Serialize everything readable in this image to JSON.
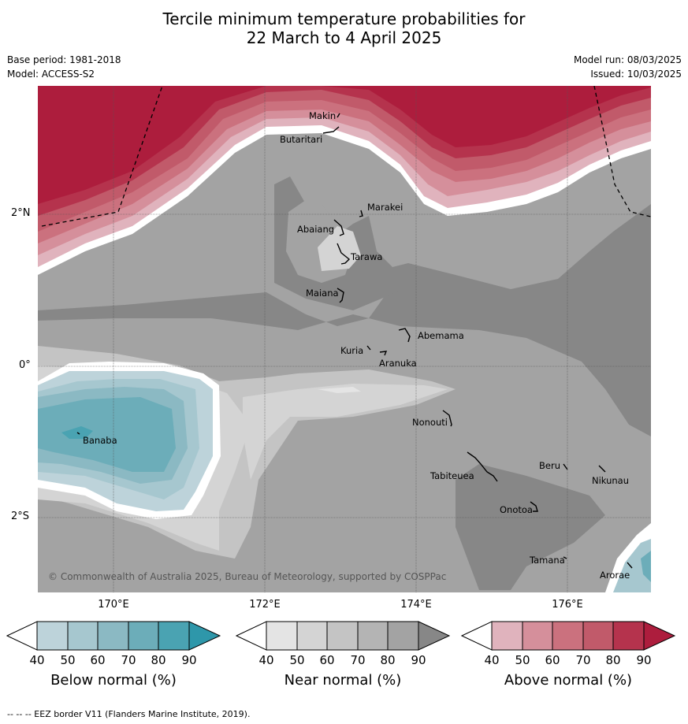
{
  "title_line1": "Tercile minimum temperature probabilities for",
  "title_line2": "22 March to 4 April 2025",
  "base_period": "Base period: 1981-2018",
  "model": "Model: ACCESS-S2",
  "model_run": "Model run: 08/03/2025",
  "issued": "Issued: 10/03/2025",
  "copyright": "© Commonwealth of Australia 2025, Bureau of Meteorology, supported by COSPPac",
  "lat_labels": [
    "2°N",
    "0°",
    "2°S"
  ],
  "lon_labels": [
    "170°E",
    "172°E",
    "174°E",
    "176°E"
  ],
  "islands": [
    "Makin",
    "Butaritari",
    "Marakei",
    "Abaiang",
    "Tarawa",
    "Maiana",
    "Abemama",
    "Kuria",
    "Aranuka",
    "Banaba",
    "Nonouti",
    "Tabiteuea",
    "Beru",
    "Nikunau",
    "Onotoa",
    "Tamana",
    "Arorae"
  ],
  "colorbars": [
    {
      "title": "Below normal (%)",
      "ticks": [
        "40",
        "50",
        "60",
        "70",
        "80",
        "90"
      ],
      "colors": [
        "#bdd3da",
        "#a6c7cf",
        "#8bb9c3",
        "#6cadb9",
        "#4aa3b2",
        "#2e97aa"
      ]
    },
    {
      "title": "Near normal (%)",
      "ticks": [
        "40",
        "50",
        "60",
        "70",
        "80",
        "90"
      ],
      "colors": [
        "#e4e4e4",
        "#d4d4d4",
        "#c4c4c4",
        "#b4b4b4",
        "#a3a3a3",
        "#878787"
      ]
    },
    {
      "title": "Above normal (%)",
      "ticks": [
        "40",
        "50",
        "60",
        "70",
        "80",
        "90"
      ],
      "colors": [
        "#e0b3bd",
        "#d58f9b",
        "#cb717e",
        "#c15a6a",
        "#b5334d",
        "#ad1d3d"
      ]
    }
  ],
  "footnote": "--  --  -- EEZ border V11 (Flanders Marine Institute, 2019)."
}
